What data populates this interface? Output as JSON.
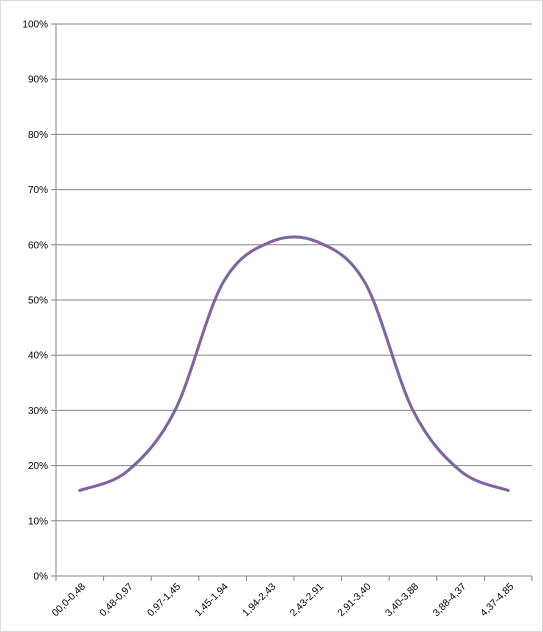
{
  "chart_data": {
    "type": "line",
    "categories": [
      "00,0-0,48",
      "0,48-0,97",
      "0,97-1,45",
      "1,45-1,94",
      "1,94-2,43",
      "2,43-2,91",
      "2,91-3,40",
      "3,40-3,88",
      "3,88-4,37",
      "4,37-4,85"
    ],
    "series": [
      {
        "values": [
          15.5,
          19,
          30,
          53,
          60.5,
          60.5,
          53,
          30,
          19,
          15.5
        ]
      }
    ],
    "yticks": [
      "0%",
      "10%",
      "20%",
      "30%",
      "40%",
      "50%",
      "60%",
      "70%",
      "80%",
      "90%",
      "100%"
    ],
    "ylim": [
      0,
      100
    ],
    "grid": "horizontal",
    "line_color": "#8064A2",
    "grid_color": "#868686"
  }
}
